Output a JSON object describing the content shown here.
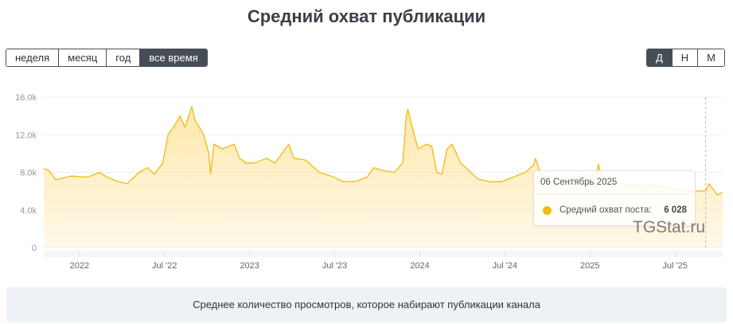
{
  "chart_data": {
    "type": "area",
    "title": "Средний охват публикации",
    "controls": {
      "periods": [
        "неделя",
        "месяц",
        "год",
        "все время"
      ],
      "active_period": "все время",
      "scales": [
        "Д",
        "Н",
        "М"
      ],
      "active_scale": "Д"
    },
    "x": [
      2021.79,
      2021.82,
      2021.86,
      2021.95,
      2022.05,
      2022.12,
      2022.16,
      2022.23,
      2022.28,
      2022.35,
      2022.4,
      2022.44,
      2022.49,
      2022.52,
      2022.56,
      2022.59,
      2022.62,
      2022.66,
      2022.68,
      2022.73,
      2022.76,
      2022.77,
      2022.79,
      2022.84,
      2022.91,
      2022.94,
      2022.98,
      2023.03,
      2023.1,
      2023.15,
      2023.23,
      2023.26,
      2023.33,
      2023.41,
      2023.48,
      2023.55,
      2023.62,
      2023.69,
      2023.73,
      2023.78,
      2023.85,
      2023.9,
      2023.92,
      2023.93,
      2023.96,
      2023.99,
      2024.04,
      2024.07,
      2024.1,
      2024.13,
      2024.16,
      2024.19,
      2024.24,
      2024.3,
      2024.34,
      2024.41,
      2024.48,
      2024.55,
      2024.62,
      2024.67,
      2024.68,
      2024.71,
      2024.81,
      2024.95,
      2025.04,
      2025.05,
      2025.07,
      2025.23,
      2025.42,
      2025.56,
      2025.68,
      2025.7,
      2025.72,
      2025.75,
      2025.78
    ],
    "series": [
      {
        "name": "Средний охват поста:",
        "color": "#f5b913",
        "fill": "#fde6a6",
        "values": [
          8400,
          8200,
          7200,
          7600,
          7500,
          8000,
          7500,
          7000,
          6800,
          8000,
          8500,
          7800,
          9000,
          12000,
          13000,
          14000,
          12800,
          15000,
          13500,
          12000,
          10000,
          7800,
          11000,
          10500,
          11000,
          9500,
          9000,
          9000,
          9500,
          9000,
          11000,
          9500,
          9300,
          8000,
          7600,
          7000,
          7000,
          7500,
          8500,
          8200,
          8000,
          9000,
          14000,
          14700,
          12500,
          10500,
          11000,
          10800,
          8000,
          7800,
          10500,
          11000,
          9000,
          8000,
          7300,
          7000,
          7000,
          7500,
          8000,
          8800,
          9500,
          7800,
          7300,
          7500,
          7800,
          8900,
          7300,
          6600,
          6500,
          6000,
          6028,
          6800,
          6300,
          5600,
          5900
        ]
      }
    ],
    "xlim": [
      2021.79,
      2025.78
    ],
    "xticks": [
      2022,
      {
        "value": 2022.5,
        "label": "Jul '22"
      },
      2023,
      {
        "value": 2023.5,
        "label": "Jul '23"
      },
      2024,
      {
        "value": 2024.5,
        "label": "Jul '24"
      },
      2025,
      {
        "value": 2025.5,
        "label": "Jul '25"
      }
    ],
    "ylim": [
      0,
      16000
    ],
    "yticks": [
      0,
      {
        "value": 4000,
        "label": "4.0k"
      },
      {
        "value": 8000,
        "label": "8.0k"
      },
      {
        "value": 12000,
        "label": "12.0k"
      },
      {
        "value": 16000,
        "label": "16.0k"
      }
    ],
    "grid": true,
    "tooltip": {
      "date": "06 Сентябрь 2025",
      "x": 2025.68,
      "value": 6028,
      "value_label": "6 028"
    },
    "watermark": "TGStat.ru",
    "description": "Среднее количество просмотров, которое набирают публикации канала"
  }
}
